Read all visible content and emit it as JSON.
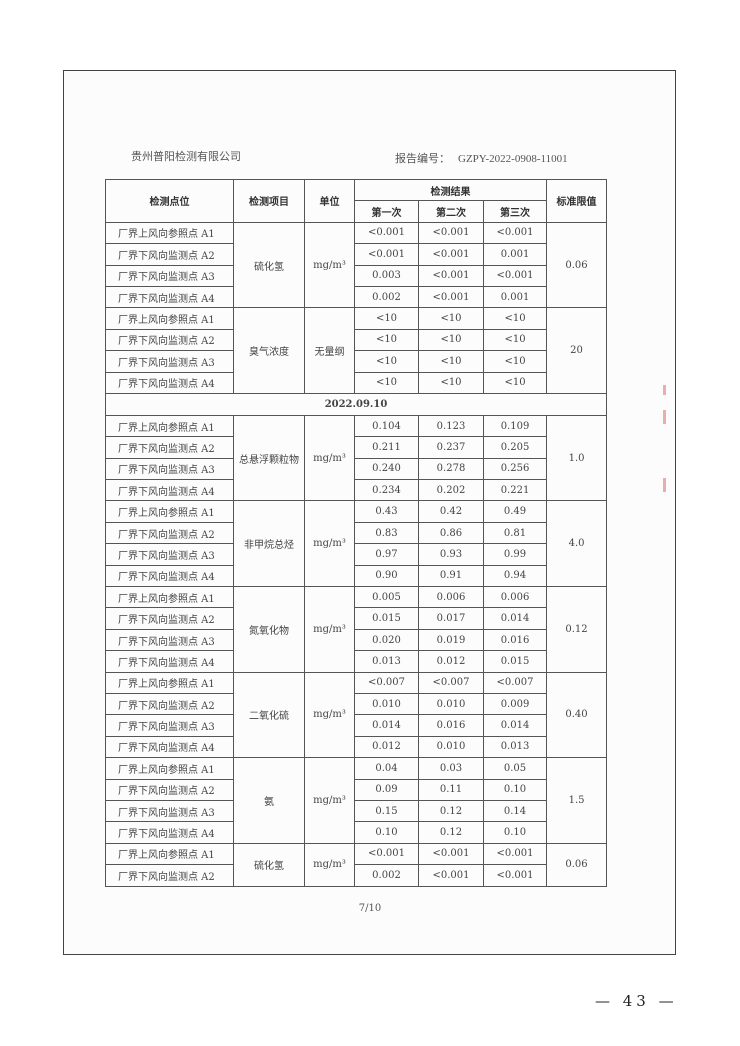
{
  "header": {
    "company": "贵州普阳检测有限公司",
    "report_label": "报告编号：",
    "report_no": "GZPY-2022-0908-11001"
  },
  "table": {
    "headers": {
      "location": "检测点位",
      "item": "检测项目",
      "unit": "单位",
      "results": "检测结果",
      "first": "第一次",
      "second": "第二次",
      "third": "第三次",
      "limit": "标准限值"
    },
    "groups": [
      {
        "item": "硫化氢",
        "unit": "mg/m³",
        "limit": "0.06",
        "rows": [
          [
            "厂界上风向参照点 A1",
            "<0.001",
            "<0.001",
            "<0.001"
          ],
          [
            "厂界下风向监测点 A2",
            "<0.001",
            "<0.001",
            "0.001"
          ],
          [
            "厂界下风向监测点 A3",
            "0.003",
            "<0.001",
            "<0.001"
          ],
          [
            "厂界下风向监测点 A4",
            "0.002",
            "<0.001",
            "0.001"
          ]
        ]
      },
      {
        "item": "臭气浓度",
        "unit": "无量纲",
        "limit": "20",
        "rows": [
          [
            "厂界上风向参照点 A1",
            "<10",
            "<10",
            "<10"
          ],
          [
            "厂界下风向监测点 A2",
            "<10",
            "<10",
            "<10"
          ],
          [
            "厂界下风向监测点 A3",
            "<10",
            "<10",
            "<10"
          ],
          [
            "厂界下风向监测点 A4",
            "<10",
            "<10",
            "<10"
          ]
        ]
      },
      {
        "date": "2022.09.10"
      },
      {
        "item": "总悬浮颗粒物",
        "unit": "mg/m³",
        "limit": "1.0",
        "rows": [
          [
            "厂界上风向参照点 A1",
            "0.104",
            "0.123",
            "0.109"
          ],
          [
            "厂界下风向监测点 A2",
            "0.211",
            "0.237",
            "0.205"
          ],
          [
            "厂界下风向监测点 A3",
            "0.240",
            "0.278",
            "0.256"
          ],
          [
            "厂界下风向监测点 A4",
            "0.234",
            "0.202",
            "0.221"
          ]
        ]
      },
      {
        "item": "非甲烷总烃",
        "unit": "mg/m³",
        "limit": "4.0",
        "rows": [
          [
            "厂界上风向参照点 A1",
            "0.43",
            "0.42",
            "0.49"
          ],
          [
            "厂界下风向监测点 A2",
            "0.83",
            "0.86",
            "0.81"
          ],
          [
            "厂界下风向监测点 A3",
            "0.97",
            "0.93",
            "0.99"
          ],
          [
            "厂界下风向监测点 A4",
            "0.90",
            "0.91",
            "0.94"
          ]
        ]
      },
      {
        "item": "氮氧化物",
        "unit": "mg/m³",
        "limit": "0.12",
        "rows": [
          [
            "厂界上风向参照点 A1",
            "0.005",
            "0.006",
            "0.006"
          ],
          [
            "厂界下风向监测点 A2",
            "0.015",
            "0.017",
            "0.014"
          ],
          [
            "厂界下风向监测点 A3",
            "0.020",
            "0.019",
            "0.016"
          ],
          [
            "厂界下风向监测点 A4",
            "0.013",
            "0.012",
            "0.015"
          ]
        ]
      },
      {
        "item": "二氧化硫",
        "unit": "mg/m³",
        "limit": "0.40",
        "rows": [
          [
            "厂界上风向参照点 A1",
            "<0.007",
            "<0.007",
            "<0.007"
          ],
          [
            "厂界下风向监测点 A2",
            "0.010",
            "0.010",
            "0.009"
          ],
          [
            "厂界下风向监测点 A3",
            "0.014",
            "0.016",
            "0.014"
          ],
          [
            "厂界下风向监测点 A4",
            "0.012",
            "0.010",
            "0.013"
          ]
        ]
      },
      {
        "item": "氨",
        "unit": "mg/m³",
        "limit": "1.5",
        "rows": [
          [
            "厂界上风向参照点 A1",
            "0.04",
            "0.03",
            "0.05"
          ],
          [
            "厂界下风向监测点 A2",
            "0.09",
            "0.11",
            "0.10"
          ],
          [
            "厂界下风向监测点 A3",
            "0.15",
            "0.12",
            "0.14"
          ],
          [
            "厂界下风向监测点 A4",
            "0.10",
            "0.12",
            "0.10"
          ]
        ]
      },
      {
        "item": "硫化氢",
        "unit": "mg/m³",
        "limit": "0.06",
        "rows": [
          [
            "厂界上风向参照点 A1",
            "<0.001",
            "<0.001",
            "<0.001"
          ],
          [
            "厂界下风向监测点 A2",
            "0.002",
            "<0.001",
            "<0.001"
          ]
        ]
      }
    ]
  },
  "footer": {
    "page": "7/10",
    "page_number": "— 43 —"
  }
}
